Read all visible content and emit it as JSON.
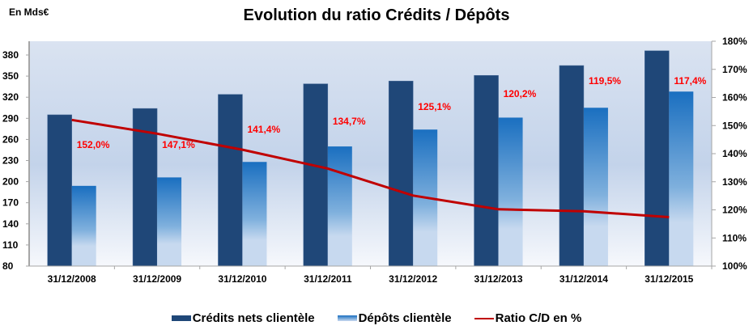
{
  "header": {
    "unit_label": "En Mds€",
    "title": "Evolution du ratio Crédits / Dépôts"
  },
  "legend": {
    "credits": "Crédits nets clientèle",
    "depots": "Dépôts clientèle",
    "ratio": "Ratio C/D en %"
  },
  "colors": {
    "credits": "#1f4778",
    "depots_top": "#1a6fc0",
    "depots_bottom": "#c7d9ef",
    "ratio_line": "#c00000",
    "ratio_labels": "#ff0000"
  },
  "chart_data": {
    "type": "bar",
    "title": "Evolution du ratio Crédits / Dépôts",
    "unit": "En Mds€",
    "categories": [
      "31/12/2008",
      "31/12/2009",
      "31/12/2010",
      "31/12/2011",
      "31/12/2012",
      "31/12/2013",
      "31/12/2014",
      "31/12/2015"
    ],
    "series": [
      {
        "name": "Crédits nets clientèle",
        "type": "bar",
        "axis": "left",
        "values": [
          295,
          304,
          324,
          339,
          343,
          351,
          365,
          386
        ]
      },
      {
        "name": "Dépôts clientèle",
        "type": "bar",
        "axis": "left",
        "values": [
          194,
          206,
          228,
          250,
          274,
          291,
          305,
          328
        ]
      },
      {
        "name": "Ratio C/D en %",
        "type": "line",
        "axis": "right",
        "values": [
          152.0,
          147.1,
          141.4,
          134.7,
          125.1,
          120.2,
          119.5,
          117.4
        ],
        "labels": [
          "152,0%",
          "147,1%",
          "141,4%",
          "134,7%",
          "125,1%",
          "120,2%",
          "119,5%",
          "117,4%"
        ]
      }
    ],
    "left_axis": {
      "ylim": [
        80,
        400
      ],
      "ticks": [
        "80",
        "110",
        "140",
        "170",
        "200",
        "230",
        "260",
        "290",
        "320",
        "350",
        "380"
      ]
    },
    "right_axis": {
      "ylim": [
        100,
        180
      ],
      "ticks": [
        "100%",
        "110%",
        "120%",
        "130%",
        "140%",
        "150%",
        "160%",
        "170%",
        "180%"
      ]
    },
    "grid": false,
    "legend_position": "bottom"
  }
}
